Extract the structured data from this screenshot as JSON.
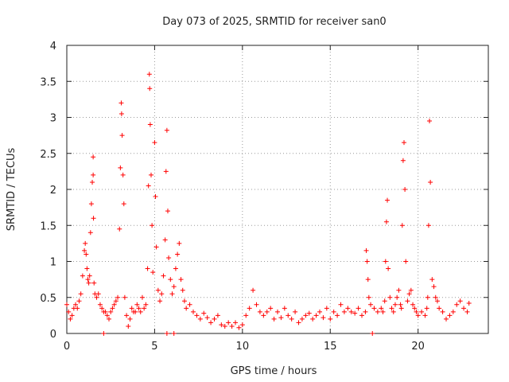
{
  "chart_data": {
    "type": "scatter",
    "title": "Day 073 of 2025, SRMTID for receiver san0",
    "xlabel": "GPS time / hours",
    "ylabel": "SRMTID / TECUs",
    "xlim": [
      0,
      24
    ],
    "ylim": [
      0,
      4
    ],
    "xticks": [
      0,
      5,
      10,
      15,
      20
    ],
    "xtick_labels": [
      "0",
      "5",
      "10",
      "15",
      "20"
    ],
    "yticks": [
      0,
      0.5,
      1,
      1.5,
      2,
      2.5,
      3,
      3.5,
      4
    ],
    "ytick_labels": [
      "0",
      "0.5",
      "1",
      "1.5",
      "2",
      "2.5",
      "3",
      "3.5",
      "4"
    ],
    "grid": true,
    "marker": "+",
    "series": [
      {
        "name": "SRMTID",
        "color": "#ff0000",
        "x": [
          0.0,
          0.1,
          0.2,
          0.3,
          0.4,
          0.5,
          0.6,
          0.7,
          0.8,
          0.9,
          1.0,
          1.05,
          1.1,
          1.15,
          1.2,
          1.25,
          1.3,
          1.35,
          1.4,
          1.45,
          1.5,
          1.5,
          1.52,
          1.55,
          1.6,
          1.7,
          1.8,
          1.9,
          2.0,
          2.1,
          2.2,
          2.3,
          2.4,
          2.5,
          2.6,
          2.7,
          2.8,
          2.9,
          3.0,
          3.05,
          3.1,
          3.12,
          3.15,
          3.2,
          3.25,
          3.3,
          3.4,
          3.5,
          3.6,
          3.7,
          3.8,
          3.9,
          4.0,
          4.1,
          4.2,
          4.3,
          4.4,
          4.5,
          4.6,
          4.65,
          4.7,
          4.72,
          4.75,
          4.8,
          4.85,
          4.9,
          5.0,
          5.05,
          5.1,
          5.2,
          5.3,
          5.4,
          5.5,
          5.6,
          5.65,
          5.7,
          5.75,
          5.8,
          5.9,
          6.0,
          6.1,
          6.2,
          6.3,
          6.4,
          6.5,
          6.6,
          6.7,
          6.8,
          7.0,
          7.2,
          7.4,
          7.6,
          7.8,
          8.0,
          8.2,
          8.4,
          8.6,
          8.8,
          9.0,
          9.2,
          9.4,
          9.6,
          9.8,
          10.0,
          10.2,
          10.4,
          10.6,
          10.8,
          11.0,
          11.2,
          11.4,
          11.6,
          11.8,
          12.0,
          12.2,
          12.4,
          12.6,
          12.8,
          13.0,
          13.2,
          13.4,
          13.6,
          13.8,
          14.0,
          14.2,
          14.4,
          14.6,
          14.8,
          15.0,
          15.2,
          15.4,
          15.6,
          15.8,
          16.0,
          16.2,
          16.4,
          16.6,
          16.8,
          17.0,
          17.05,
          17.1,
          17.15,
          17.2,
          17.3,
          17.5,
          17.7,
          17.9,
          18.0,
          18.1,
          18.15,
          18.2,
          18.25,
          18.3,
          18.4,
          18.5,
          18.6,
          18.7,
          18.8,
          18.9,
          19.0,
          19.05,
          19.1,
          19.15,
          19.2,
          19.25,
          19.3,
          19.4,
          19.5,
          19.6,
          19.7,
          19.8,
          19.9,
          20.0,
          20.2,
          20.4,
          20.5,
          20.55,
          20.6,
          20.65,
          20.7,
          20.8,
          20.9,
          21.0,
          21.1,
          21.2,
          21.4,
          21.6,
          21.8,
          22.0,
          22.2,
          22.4,
          22.6,
          22.8,
          22.9,
          2.1,
          5.7,
          6.1,
          17.4
        ],
        "y": [
          0.4,
          0.3,
          0.2,
          0.25,
          0.35,
          0.4,
          0.35,
          0.45,
          0.55,
          0.8,
          1.15,
          1.25,
          1.1,
          0.9,
          0.75,
          0.7,
          0.8,
          1.4,
          1.8,
          2.1,
          2.45,
          2.2,
          1.6,
          0.7,
          0.55,
          0.5,
          0.55,
          0.4,
          0.35,
          0.3,
          0.3,
          0.25,
          0.2,
          0.3,
          0.35,
          0.4,
          0.45,
          0.5,
          1.45,
          2.3,
          3.2,
          3.05,
          2.75,
          2.2,
          1.8,
          0.5,
          0.25,
          0.1,
          0.2,
          0.35,
          0.3,
          0.3,
          0.4,
          0.35,
          0.3,
          0.5,
          0.35,
          0.4,
          0.9,
          2.05,
          3.6,
          3.4,
          2.9,
          2.2,
          1.5,
          0.85,
          2.65,
          1.9,
          1.2,
          0.6,
          0.45,
          0.55,
          0.8,
          1.3,
          2.25,
          2.82,
          1.7,
          1.05,
          0.75,
          0.55,
          0.65,
          0.9,
          1.1,
          1.25,
          0.75,
          0.6,
          0.45,
          0.35,
          0.4,
          0.3,
          0.25,
          0.2,
          0.28,
          0.22,
          0.15,
          0.2,
          0.25,
          0.12,
          0.1,
          0.15,
          0.1,
          0.15,
          0.08,
          0.12,
          0.25,
          0.35,
          0.6,
          0.4,
          0.3,
          0.25,
          0.3,
          0.35,
          0.2,
          0.3,
          0.22,
          0.35,
          0.25,
          0.2,
          0.3,
          0.15,
          0.2,
          0.25,
          0.28,
          0.2,
          0.25,
          0.3,
          0.22,
          0.35,
          0.2,
          0.3,
          0.25,
          0.4,
          0.3,
          0.35,
          0.3,
          0.28,
          0.35,
          0.25,
          0.3,
          1.15,
          1.0,
          0.75,
          0.5,
          0.4,
          0.35,
          0.3,
          0.35,
          0.3,
          0.45,
          1.0,
          1.55,
          1.85,
          0.9,
          0.5,
          0.35,
          0.3,
          0.4,
          0.5,
          0.6,
          0.4,
          0.35,
          1.5,
          2.4,
          2.65,
          2.0,
          1.0,
          0.45,
          0.55,
          0.6,
          0.4,
          0.35,
          0.3,
          0.25,
          0.3,
          0.25,
          0.35,
          0.5,
          1.5,
          2.95,
          2.1,
          0.75,
          0.65,
          0.5,
          0.45,
          0.35,
          0.3,
          0.2,
          0.25,
          0.3,
          0.4,
          0.45,
          0.35,
          0.3,
          0.42,
          0.0,
          0.0,
          0.0,
          0.0
        ]
      }
    ]
  }
}
